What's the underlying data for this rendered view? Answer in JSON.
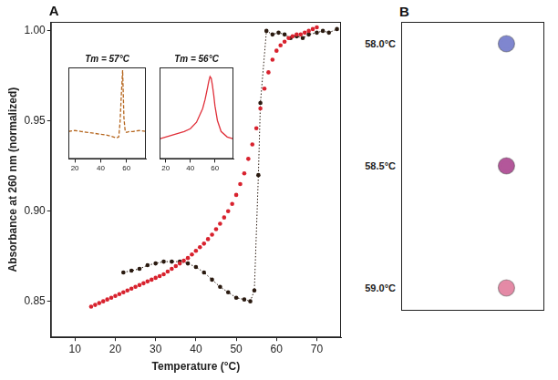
{
  "chart_data": [
    {
      "type": "scatter",
      "title": "A",
      "xlabel": "Temperature (°C)",
      "ylabel": "Absorbance at 260 nm (normalized)",
      "xlim": [
        4,
        76
      ],
      "xticks": [
        10,
        20,
        30,
        40,
        50,
        60,
        70
      ],
      "ylim": [
        0.83,
        1.005
      ],
      "yticks": [
        0.85,
        {
          "value": 0.9,
          "label": "0.90"
        },
        0.95,
        {
          "value": 1,
          "label": "1.00"
        }
      ],
      "grid": false,
      "series": [
        {
          "color": "#d8222e",
          "marker": "circle",
          "line_style": "none",
          "x": [
            14,
            15,
            16,
            17,
            18,
            19,
            20,
            21,
            22,
            23,
            24,
            25,
            26,
            27,
            28,
            29,
            30,
            31,
            32,
            33,
            34,
            35,
            36,
            37,
            38,
            39,
            40,
            41,
            42,
            43,
            44,
            45,
            46,
            47,
            48,
            49,
            50,
            51,
            52,
            53,
            54,
            55,
            56,
            57,
            58,
            59,
            60,
            61,
            62,
            63,
            64,
            65,
            66,
            67,
            68,
            69,
            70
          ],
          "values": [
            0.847,
            0.848,
            0.849,
            0.85,
            0.851,
            0.852,
            0.853,
            0.854,
            0.855,
            0.856,
            0.857,
            0.858,
            0.859,
            0.86,
            0.861,
            0.862,
            0.863,
            0.864,
            0.865,
            0.8665,
            0.868,
            0.8695,
            0.871,
            0.8725,
            0.874,
            0.876,
            0.878,
            0.88,
            0.882,
            0.8845,
            0.887,
            0.89,
            0.893,
            0.8965,
            0.9,
            0.904,
            0.909,
            0.915,
            0.921,
            0.929,
            0.937,
            0.946,
            0.957,
            0.968,
            0.977,
            0.984,
            0.989,
            0.992,
            0.994,
            0.996,
            0.997,
            0.998,
            0.998,
            0.999,
            1.0,
            1.001,
            1.002
          ]
        },
        {
          "color": "#2a1a10",
          "marker": "circle",
          "line_style": "dotted",
          "x": [
            22,
            24,
            26,
            28,
            30,
            32,
            34,
            36,
            38,
            40,
            42,
            44,
            46,
            48,
            50,
            52,
            53.5,
            54.5,
            55.5,
            56,
            57.5,
            59,
            60.5,
            62,
            63.5,
            65,
            66.5,
            68,
            70,
            71.5,
            73,
            75
          ],
          "values": [
            0.866,
            0.867,
            0.868,
            0.87,
            0.871,
            0.872,
            0.872,
            0.872,
            0.871,
            0.869,
            0.866,
            0.862,
            0.858,
            0.855,
            0.852,
            0.851,
            0.85,
            0.856,
            0.92,
            0.96,
            1.0,
            0.998,
            0.999,
            0.998,
            0.996,
            0.997,
            0.996,
            0.998,
            0.999,
            1.0,
            0.999,
            1.001
          ]
        }
      ]
    },
    {
      "type": "line",
      "title": "Tm = 57°C",
      "xlim": [
        15,
        75
      ],
      "xticks": [
        20,
        40,
        60
      ],
      "ylim": [
        0,
        1
      ],
      "yticks": [],
      "tick_labels": "x",
      "grid": false,
      "series": [
        {
          "color": "#b5651d",
          "marker": "none",
          "line_style": "dashed",
          "x": [
            15,
            20,
            25,
            30,
            35,
            40,
            45,
            50,
            52,
            54,
            55,
            56,
            57,
            58,
            59,
            60,
            62,
            65,
            70,
            75
          ],
          "values": [
            0.3,
            0.31,
            0.3,
            0.29,
            0.28,
            0.27,
            0.26,
            0.24,
            0.23,
            0.24,
            0.4,
            0.7,
            0.97,
            0.45,
            0.3,
            0.29,
            0.3,
            0.3,
            0.31,
            0.3
          ]
        }
      ]
    },
    {
      "type": "line",
      "title": "Tm = 56°C",
      "xlim": [
        15,
        75
      ],
      "xticks": [
        20,
        40,
        60
      ],
      "ylim": [
        0,
        1
      ],
      "yticks": [],
      "tick_labels": "x",
      "grid": false,
      "series": [
        {
          "color": "#e0303a",
          "marker": "none",
          "line_style": "solid",
          "x": [
            15,
            20,
            25,
            30,
            35,
            40,
            45,
            50,
            52,
            54,
            55,
            56,
            57,
            58,
            59,
            60,
            62,
            65,
            70,
            75
          ],
          "values": [
            0.22,
            0.24,
            0.26,
            0.28,
            0.3,
            0.33,
            0.4,
            0.55,
            0.65,
            0.78,
            0.85,
            0.9,
            0.88,
            0.8,
            0.7,
            0.58,
            0.42,
            0.3,
            0.24,
            0.22
          ]
        }
      ]
    },
    {
      "type": "dots",
      "title": "B",
      "categories": [
        "58.0°C",
        "58.5°C",
        "59.0°C"
      ],
      "colors": [
        "#7f86cf",
        "#b3579a",
        "#e48aa6"
      ]
    }
  ]
}
